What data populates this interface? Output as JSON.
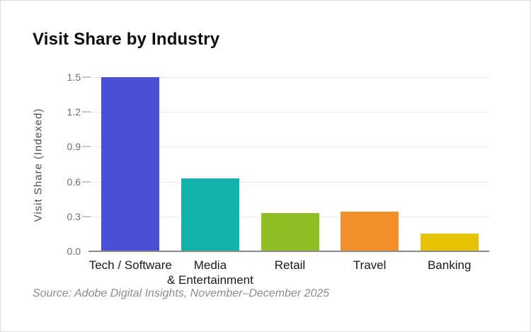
{
  "chart_data": {
    "type": "bar",
    "title": "Visit Share by Industry",
    "ylabel": "Visit Share (Indexed)",
    "xlabel": "",
    "categories": [
      "Tech / Software",
      "Media\n& Entertainment",
      "Retail",
      "Travel",
      "Banking"
    ],
    "values": [
      1.5,
      0.63,
      0.33,
      0.34,
      0.15
    ],
    "bar_colors": [
      "#4a4fd5",
      "#15b1ab",
      "#8ebe23",
      "#f4902c",
      "#e7c306"
    ],
    "ylim": [
      0,
      1.5
    ],
    "yticks": [
      0,
      0.3,
      0.6,
      0.9,
      1.2,
      1.5
    ],
    "ytick_decimals": 1,
    "grid": true,
    "legend": false,
    "grid_color": "#e9e9e9",
    "axis_color": "#8a8a8a",
    "tick_color": "#c7c7c7",
    "source_note": "Source: Adobe Digital Insights, November–December 2025"
  }
}
